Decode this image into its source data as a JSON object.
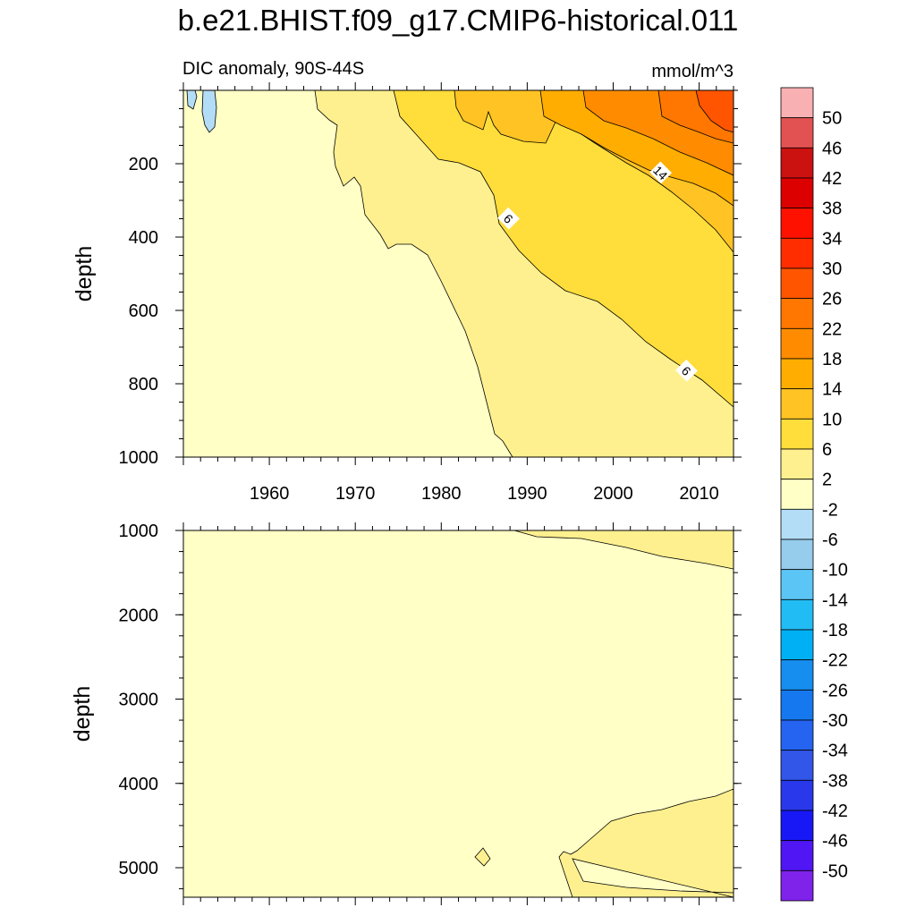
{
  "chart_data": {
    "type": "heatmap",
    "title": "b.e21.BHIST.f09_g17.CMIP6-historical.011",
    "subtitle": "DIC anomaly, 90S-44S",
    "units": "mmol/m^3",
    "colorbar": {
      "levels": [
        "50",
        "46",
        "42",
        "38",
        "34",
        "30",
        "26",
        "22",
        "18",
        "14",
        "10",
        "6",
        "2",
        "-2",
        "-6",
        "-10",
        "-14",
        "-18",
        "-22",
        "-26",
        "-30",
        "-34",
        "-38",
        "-42",
        "-46",
        "-50"
      ],
      "colors": [
        "#f8b0b3",
        "#e35252",
        "#cc1111",
        "#dd0000",
        "#ff1100",
        "#ff2d00",
        "#ff5500",
        "#ff7700",
        "#ff8c00",
        "#ffad00",
        "#ffc324",
        "#ffdd3a",
        "#fff08f",
        "#ffffc6",
        "#b3ddf6",
        "#96ccec",
        "#5bc6f5",
        "#22bcf5",
        "#00b0f5",
        "#168eef",
        "#1678ef",
        "#2564f0",
        "#3256e8",
        "#2838ea",
        "#1818f7",
        "#5016f4",
        "#7f22ea"
      ]
    },
    "x_ticks": [
      "1960",
      "1970",
      "1980",
      "1990",
      "2000",
      "2010"
    ],
    "panels": [
      {
        "name": "upper",
        "xlabel": "",
        "ylabel": "depth",
        "y_ticks": [
          "200",
          "400",
          "600",
          "800",
          "1000"
        ],
        "x_range": [
          1950,
          2014
        ],
        "y_range": [
          0,
          1000
        ],
        "contour_labels": [
          {
            "text": "14",
            "year": 2005.5,
            "depth": 225
          },
          {
            "text": "6",
            "year": 1987.8,
            "depth": 350
          },
          {
            "text": "6",
            "year": 2008.5,
            "depth": 765
          }
        ]
      },
      {
        "name": "lower",
        "xlabel": "",
        "ylabel": "depth",
        "y_ticks": [
          "1000",
          "2000",
          "3000",
          "4000",
          "5000"
        ],
        "x_range": [
          1950,
          2014
        ],
        "y_range": [
          1000,
          5350
        ]
      }
    ]
  }
}
